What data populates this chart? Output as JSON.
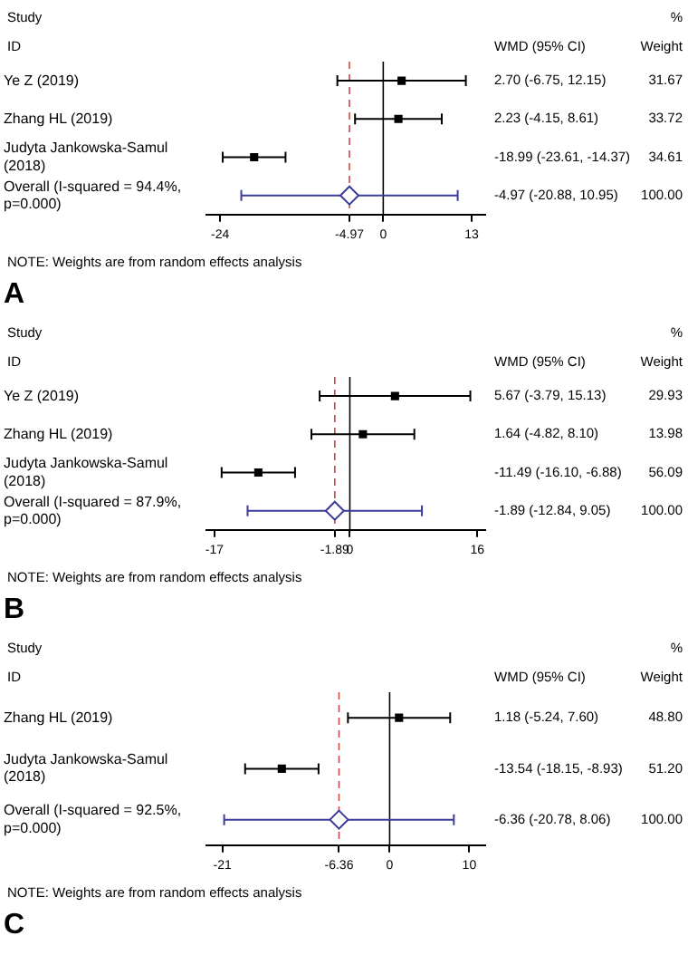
{
  "chart_data": [
    {
      "type": "scatter",
      "title": "A",
      "orientation": "horizontal",
      "categories": [
        "Ye Z (2019)",
        "Zhang HL (2019)",
        "Judyta Jankowska-Samul (2018)",
        "Overall (I-squared = 94.4%, p=0.000)"
      ],
      "xlim": [
        -26,
        15
      ],
      "xticks": [
        -24,
        -4.97,
        0,
        13
      ],
      "series": [
        {
          "marker": "square",
          "color": "#000000",
          "values": [
            2.7,
            2.23,
            -18.99,
            null
          ],
          "errors": [
            [
              -6.75,
              12.15
            ],
            [
              -4.15,
              8.61
            ],
            [
              -23.61,
              -14.37
            ],
            null
          ]
        },
        {
          "marker": "diamond",
          "color": "#3b3b9b",
          "values": [
            null,
            null,
            null,
            -4.97
          ],
          "errors": [
            null,
            null,
            null,
            [
              -20.88,
              10.95
            ]
          ]
        }
      ],
      "ref_lines": [
        {
          "axis": "x",
          "value": 0,
          "color": "#000000",
          "line_style": "solid"
        },
        {
          "axis": "x",
          "value": -4.97,
          "color": "#d04848",
          "line_style": "dashed"
        }
      ],
      "annotations": [
        "Study",
        "ID",
        "WMD (95% CI)",
        "%",
        "Weight",
        "NOTE: Weights are from random effects analysis",
        "2.70 (-6.75, 12.15)",
        "31.67",
        "2.23 (-4.15, 8.61)",
        "33.72",
        "-18.99 (-23.61, -14.37)",
        "34.61",
        "-4.97 (-20.88, 10.95)",
        "100.00"
      ]
    },
    {
      "type": "scatter",
      "title": "B",
      "orientation": "horizontal",
      "categories": [
        "Ye Z (2019)",
        "Zhang HL (2019)",
        "Judyta Jankowska-Samul (2018)",
        "Overall (I-squared = 87.9%, p=0.000)"
      ],
      "xlim": [
        -18,
        17
      ],
      "xticks": [
        -17,
        -1.89,
        0,
        16
      ],
      "series": [
        {
          "marker": "square",
          "color": "#000000",
          "values": [
            5.67,
            1.64,
            -11.49,
            null
          ],
          "errors": [
            [
              -3.79,
              15.13
            ],
            [
              -4.82,
              8.1
            ],
            [
              -16.1,
              -6.88
            ],
            null
          ]
        },
        {
          "marker": "diamond",
          "color": "#3b3b9b",
          "values": [
            null,
            null,
            null,
            -1.89
          ],
          "errors": [
            null,
            null,
            null,
            [
              -12.84,
              9.05
            ]
          ]
        }
      ],
      "ref_lines": [
        {
          "axis": "x",
          "value": 0,
          "color": "#000000",
          "line_style": "solid"
        },
        {
          "axis": "x",
          "value": -1.89,
          "color": "#d04848",
          "line_style": "dashed"
        }
      ],
      "annotations": [
        "Study",
        "ID",
        "WMD (95% CI)",
        "%",
        "Weight",
        "NOTE: Weights are from random effects analysis",
        "5.67 (-3.79, 15.13)",
        "29.93",
        "1.64 (-4.82, 8.10)",
        "13.98",
        "-11.49 (-16.10, -6.88)",
        "56.09",
        "-1.89 (-12.84, 9.05)",
        "100.00"
      ]
    },
    {
      "type": "scatter",
      "title": "C",
      "orientation": "horizontal",
      "categories": [
        "Zhang HL (2019)",
        "Judyta Jankowska-Samul (2018)",
        "Overall (I-squared = 92.5%, p=0.000)"
      ],
      "xlim": [
        -23,
        12
      ],
      "xticks": [
        -21,
        -6.36,
        0,
        10
      ],
      "series": [
        {
          "marker": "square",
          "color": "#000000",
          "values": [
            1.18,
            -13.54,
            null
          ],
          "errors": [
            [
              -5.24,
              7.6
            ],
            [
              -18.15,
              -8.93
            ],
            null
          ]
        },
        {
          "marker": "diamond",
          "color": "#3b3b9b",
          "values": [
            null,
            null,
            -6.36
          ],
          "errors": [
            null,
            null,
            [
              -20.78,
              8.06
            ]
          ]
        }
      ],
      "ref_lines": [
        {
          "axis": "x",
          "value": 0,
          "color": "#000000",
          "line_style": "solid"
        },
        {
          "axis": "x",
          "value": -6.36,
          "color": "#d04848",
          "line_style": "dashed"
        }
      ],
      "annotations": [
        "Study",
        "ID",
        "WMD (95% CI)",
        "%",
        "Weight",
        "NOTE: Weights are from random effects analysis",
        "1.18 (-5.24, 7.60)",
        "48.80",
        "-13.54 (-18.15, -8.93)",
        "51.20",
        "-6.36 (-20.78, 8.06)",
        "100.00"
      ]
    }
  ]
}
